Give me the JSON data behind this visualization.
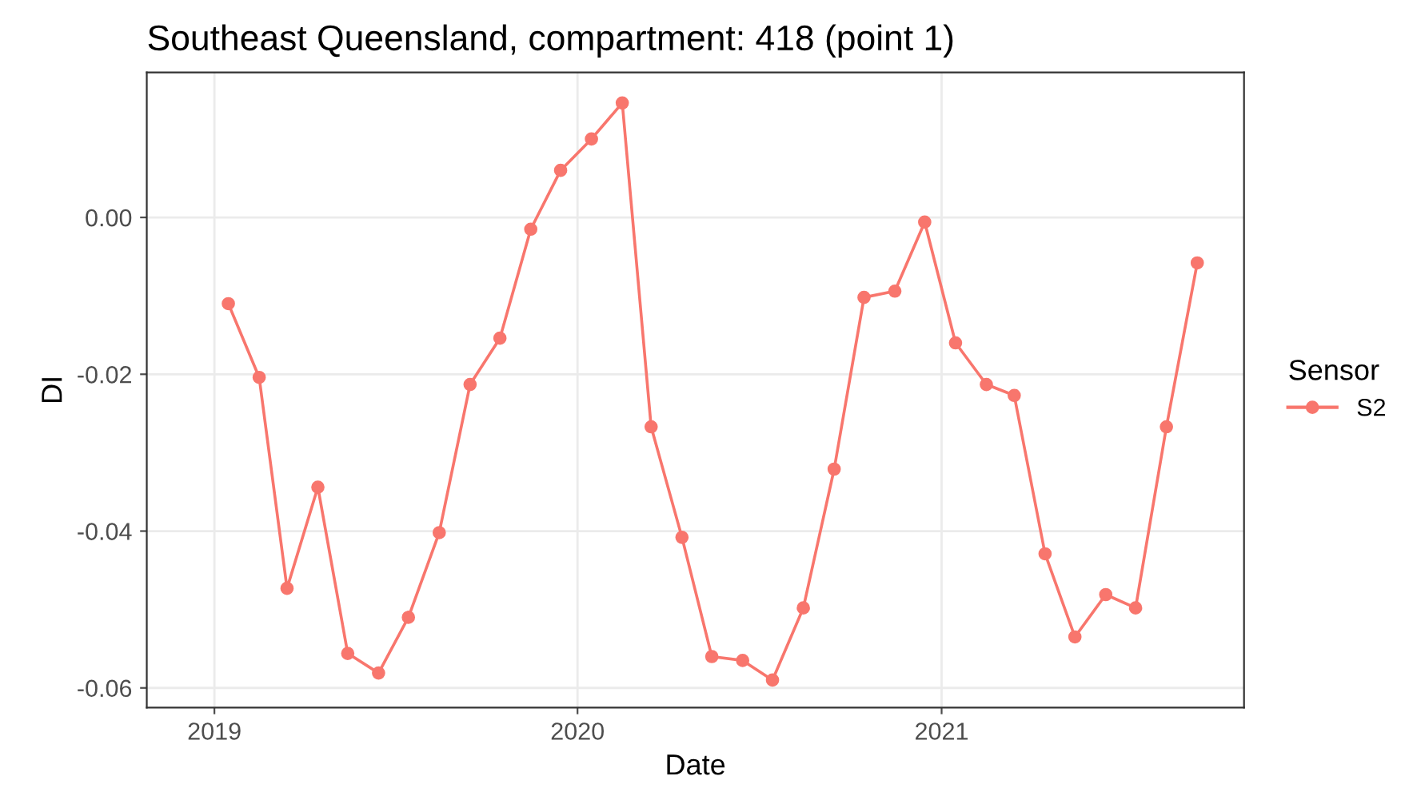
{
  "chart_data": {
    "type": "line",
    "title": "Southeast Queensland, compartment: 418 (point 1)",
    "xlabel": "Date",
    "ylabel": "DI",
    "legend_title": "Sensor",
    "x": [
      "2019-01-15",
      "2019-02-15",
      "2019-03-15",
      "2019-04-15",
      "2019-05-15",
      "2019-06-15",
      "2019-07-15",
      "2019-08-15",
      "2019-09-15",
      "2019-10-15",
      "2019-11-15",
      "2019-12-15",
      "2020-01-15",
      "2020-02-15",
      "2020-03-15",
      "2020-04-15",
      "2020-05-15",
      "2020-06-15",
      "2020-07-15",
      "2020-08-15",
      "2020-09-15",
      "2020-10-15",
      "2020-11-15",
      "2020-12-15",
      "2021-01-15",
      "2021-02-15",
      "2021-03-15",
      "2021-04-15",
      "2021-05-15",
      "2021-06-15",
      "2021-07-15",
      "2021-08-15",
      "2021-09-15"
    ],
    "series": [
      {
        "name": "S2",
        "color": "#f8766d",
        "values": [
          -0.011,
          -0.0204,
          -0.0473,
          -0.0344,
          -0.0556,
          -0.0581,
          -0.051,
          -0.0402,
          -0.0213,
          -0.0154,
          -0.0015,
          0.006,
          0.01,
          0.0146,
          -0.0267,
          -0.0408,
          -0.056,
          -0.0565,
          -0.059,
          -0.0498,
          -0.0321,
          -0.0102,
          -0.0094,
          -0.0006,
          -0.016,
          -0.0213,
          -0.0227,
          -0.0429,
          -0.0535,
          -0.0481,
          -0.0498,
          -0.0267,
          -0.0058
        ]
      }
    ],
    "xlim": [
      "2018-10-25",
      "2021-11-01"
    ],
    "xticks": [
      {
        "value": "2019-01-01",
        "label": "2019"
      },
      {
        "value": "2020-01-01",
        "label": "2020"
      },
      {
        "value": "2021-01-01",
        "label": "2021"
      }
    ],
    "ylim": [
      -0.0625,
      0.0185
    ],
    "yticks": [
      {
        "value": -0.06,
        "label": "-0.06"
      },
      {
        "value": -0.04,
        "label": "-0.04"
      },
      {
        "value": -0.02,
        "label": "-0.02"
      },
      {
        "value": 0.0,
        "label": "0.00"
      }
    ],
    "grid": true,
    "legend": "right",
    "marker": "circle",
    "line_style": "solid"
  }
}
